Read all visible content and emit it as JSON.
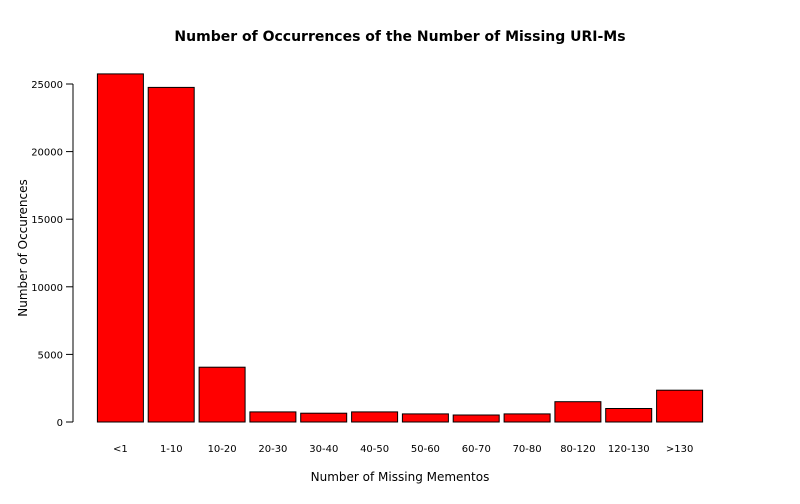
{
  "chart_data": {
    "type": "bar",
    "title": "Number of Occurrences of the Number of Missing URI-Ms",
    "xlabel": "Number of Missing Mementos",
    "ylabel": "Number of Occurences",
    "categories": [
      "<1",
      "1-10",
      "10-20",
      "20-30",
      "30-40",
      "40-50",
      "50-60",
      "60-70",
      "70-80",
      "80-120",
      "120-130",
      ">130"
    ],
    "values": [
      25750,
      24750,
      4050,
      750,
      650,
      750,
      600,
      520,
      600,
      1500,
      1000,
      2350
    ],
    "ylim": [
      0,
      26000
    ],
    "yticks": [
      0,
      5000,
      10000,
      15000,
      20000,
      25000
    ],
    "ytick_labels": [
      "0",
      "5000",
      "10000",
      "15000",
      "20000",
      "25000"
    ],
    "bar_color": "#ff0000",
    "bar_border_color": "#000000",
    "grid": false
  }
}
